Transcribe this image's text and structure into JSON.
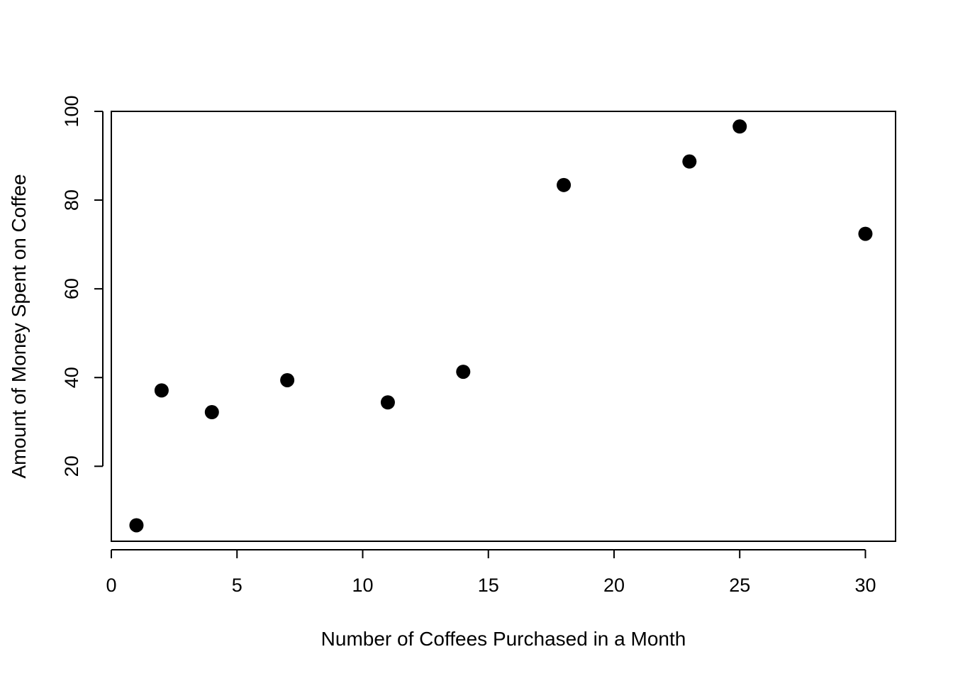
{
  "chart_data": {
    "type": "scatter",
    "title": "",
    "xlabel": "Number of Coffees Purchased in a Month",
    "ylabel": "Amount of Money Spent on Coffee",
    "xlim": [
      0,
      31.2
    ],
    "ylim": [
      3.1,
      100
    ],
    "xticks": [
      0,
      5,
      10,
      15,
      20,
      25,
      30
    ],
    "yticks": [
      20,
      40,
      60,
      80,
      100
    ],
    "grid": false,
    "legend": "none",
    "point_color": "#000000",
    "series": [
      {
        "x": [
          1,
          2,
          4,
          7,
          11,
          14,
          18,
          23,
          25,
          30
        ],
        "y": [
          6.7,
          37.1,
          32.2,
          39.4,
          34.4,
          41.3,
          83.4,
          88.7,
          96.6,
          72.4
        ]
      }
    ]
  }
}
